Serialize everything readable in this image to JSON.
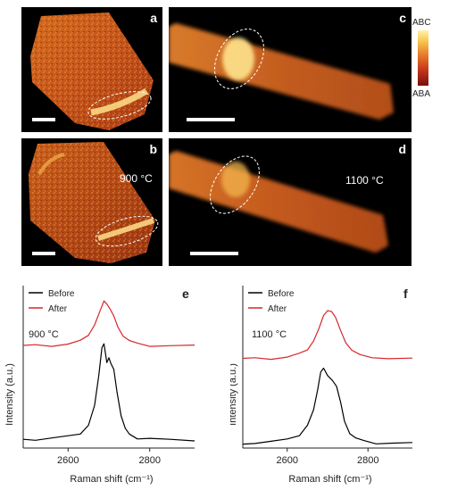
{
  "panels": {
    "a": {
      "letter": "a"
    },
    "b": {
      "letter": "b",
      "temperature": "900 °C"
    },
    "c": {
      "letter": "c"
    },
    "d": {
      "letter": "d",
      "temperature": "1100 °C"
    }
  },
  "colorbar": {
    "top_label": "ABC",
    "bottom_label": "ABA",
    "colors": [
      "#fff4a8",
      "#f7c64e",
      "#e8782a",
      "#c63a1c",
      "#7a0d0d"
    ]
  },
  "chart_data": [
    {
      "type": "line",
      "panel": "e",
      "annotation": "900 °C",
      "xlabel": "Raman shift (cm⁻¹)",
      "ylabel": "Intensity (a.u.)",
      "xlim": [
        2490,
        2910
      ],
      "xticks": [
        2600,
        2800
      ],
      "legend": "top-left",
      "series": [
        {
          "name": "Before",
          "color": "#000000",
          "x": [
            2490,
            2520,
            2560,
            2600,
            2630,
            2650,
            2665,
            2675,
            2683,
            2688,
            2695,
            2700,
            2705,
            2712,
            2720,
            2730,
            2740,
            2750,
            2770,
            2800,
            2850,
            2910
          ],
          "y": [
            0.06,
            0.05,
            0.06,
            0.07,
            0.09,
            0.14,
            0.26,
            0.45,
            0.62,
            0.64,
            0.52,
            0.56,
            0.52,
            0.48,
            0.35,
            0.2,
            0.12,
            0.08,
            0.06,
            0.06,
            0.05,
            0.05
          ]
        },
        {
          "name": "After",
          "color": "#d7262a",
          "x": [
            2490,
            2520,
            2560,
            2600,
            2630,
            2650,
            2665,
            2678,
            2688,
            2695,
            2702,
            2712,
            2722,
            2735,
            2750,
            2770,
            2800,
            2850,
            2910
          ],
          "y": [
            0.63,
            0.63,
            0.63,
            0.64,
            0.66,
            0.7,
            0.76,
            0.84,
            0.9,
            0.89,
            0.86,
            0.81,
            0.75,
            0.69,
            0.66,
            0.64,
            0.63,
            0.63,
            0.63
          ]
        }
      ]
    },
    {
      "type": "line",
      "panel": "f",
      "annotation": "1100 °C",
      "xlabel": "Raman shift (cm⁻¹)",
      "ylabel": "Intensity (a.u.)",
      "xlim": [
        2490,
        2910
      ],
      "xticks": [
        2600,
        2800
      ],
      "legend": "top-left",
      "series": [
        {
          "name": "Before",
          "color": "#000000",
          "x": [
            2490,
            2520,
            2560,
            2600,
            2630,
            2650,
            2665,
            2675,
            2683,
            2690,
            2700,
            2712,
            2722,
            2732,
            2742,
            2755,
            2770,
            2790,
            2820,
            2860,
            2910
          ],
          "y": [
            0.03,
            0.03,
            0.04,
            0.05,
            0.08,
            0.14,
            0.23,
            0.36,
            0.47,
            0.49,
            0.44,
            0.42,
            0.38,
            0.28,
            0.17,
            0.09,
            0.06,
            0.04,
            0.03,
            0.03,
            0.03
          ]
        },
        {
          "name": "After",
          "color": "#d7262a",
          "x": [
            2490,
            2520,
            2560,
            2600,
            2630,
            2650,
            2665,
            2678,
            2690,
            2700,
            2710,
            2720,
            2732,
            2745,
            2760,
            2780,
            2810,
            2850,
            2910
          ],
          "y": [
            0.55,
            0.55,
            0.55,
            0.56,
            0.58,
            0.61,
            0.66,
            0.73,
            0.81,
            0.85,
            0.84,
            0.8,
            0.73,
            0.65,
            0.6,
            0.57,
            0.56,
            0.55,
            0.55
          ]
        }
      ]
    }
  ]
}
